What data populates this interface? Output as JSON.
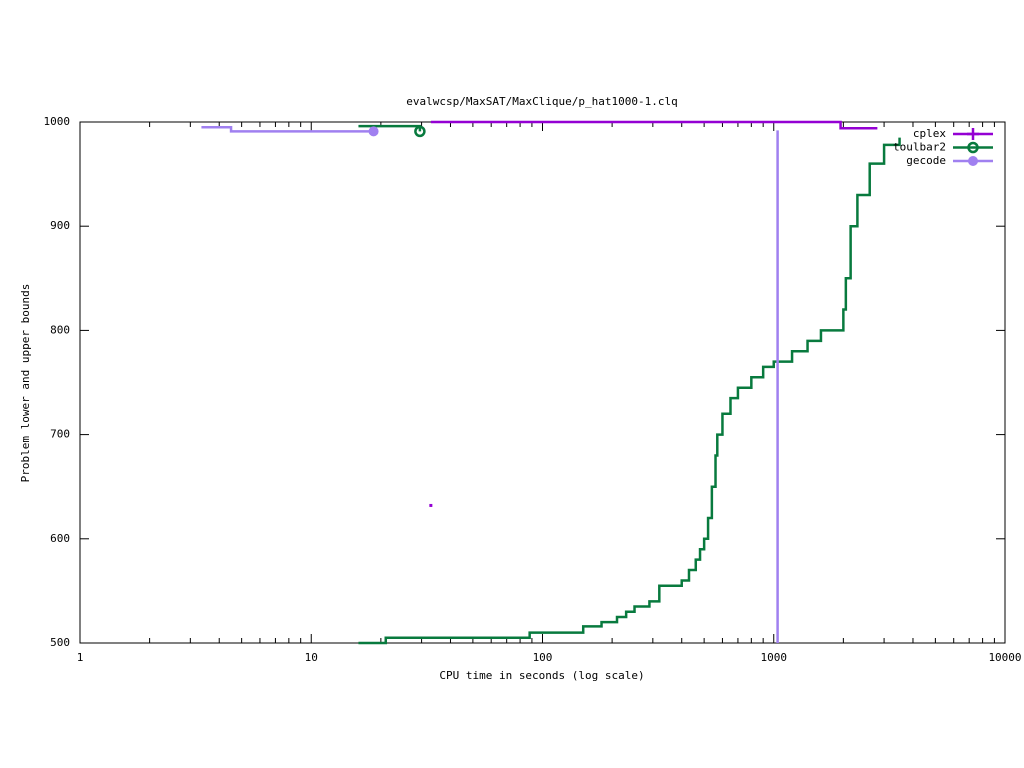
{
  "chart_data": {
    "type": "line",
    "title": "evalwcsp/MaxSAT/MaxClique/p_hat1000-1.clq",
    "x_label": "CPU time in seconds (log scale)",
    "y_label": "Problem lower and upper bounds",
    "x_log": true,
    "step": true,
    "legend": "top-right",
    "xlim": [
      1,
      10000
    ],
    "xticks": [
      1,
      10,
      100,
      1000,
      10000
    ],
    "ylim": [
      500,
      1000
    ],
    "yticks": [
      500,
      600,
      700,
      800,
      900,
      1000
    ],
    "series": [
      {
        "name": "cplex",
        "color": "#9400d3",
        "marker": "plus",
        "x": [
          32.9,
          null,
          32.9,
          1945,
          2806
        ],
        "values": [
          632,
          null,
          1000,
          994,
          994
        ]
      },
      {
        "name": "toulbar2",
        "color": "#087a3e",
        "marker": "circle",
        "x": [
          16,
          23.4,
          29.5,
          null,
          16,
          21,
          88,
          150,
          180,
          210,
          230,
          250,
          290,
          320,
          380,
          400,
          430,
          460,
          480,
          500,
          520,
          540,
          560,
          570,
          600,
          650,
          700,
          800,
          900,
          1000,
          1200,
          1400,
          1600,
          1900,
          2000,
          2050,
          2150,
          2300,
          2600,
          3000,
          3500
        ],
        "values": [
          996,
          996,
          991,
          null,
          500,
          505,
          510,
          516,
          520,
          525,
          530,
          535,
          540,
          555,
          555,
          560,
          570,
          580,
          590,
          600,
          620,
          650,
          680,
          700,
          720,
          735,
          745,
          755,
          765,
          770,
          780,
          790,
          800,
          800,
          820,
          850,
          900,
          930,
          960,
          978,
          985
        ]
      },
      {
        "name": "gecode",
        "color": "#a080f0",
        "marker": "dot",
        "x": [
          3.35,
          4.5,
          18.6,
          null,
          1039,
          1039
        ],
        "values": [
          995,
          991,
          991,
          null,
          500,
          992
        ]
      }
    ]
  }
}
